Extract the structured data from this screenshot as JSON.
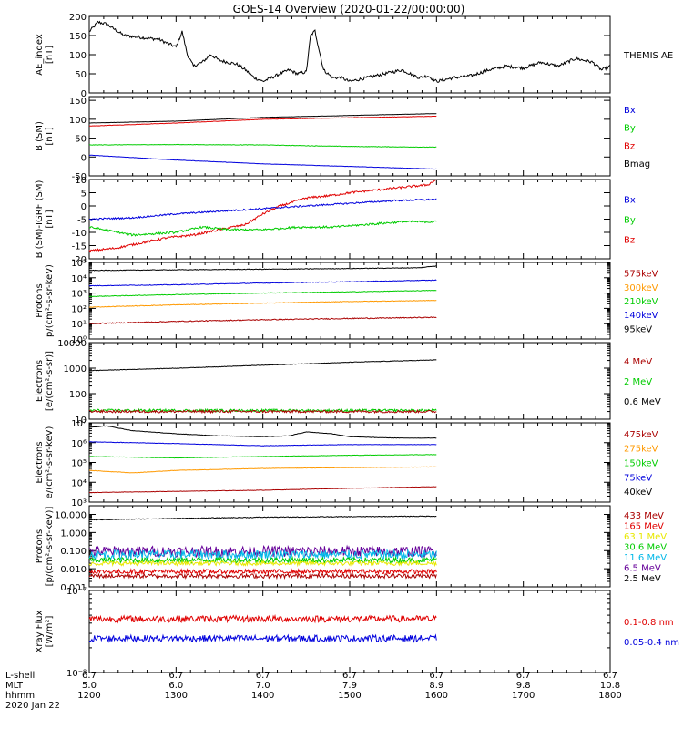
{
  "title": "GOES-14 Overview (2020-01-22/00:00:00)",
  "footer": {
    "row_labels": [
      "L-shell",
      "MLT",
      "hhmm",
      "2020 Jan 22"
    ],
    "columns": [
      {
        "lshell": "6.7",
        "mlt": "5.0",
        "hhmm": "1200"
      },
      {
        "lshell": "6.7",
        "mlt": "6.0",
        "hhmm": "1300"
      },
      {
        "lshell": "6.7",
        "mlt": "7.0",
        "hhmm": "1400"
      },
      {
        "lshell": "6.7",
        "mlt": "7.9",
        "hhmm": "1500"
      },
      {
        "lshell": "6.7",
        "mlt": "8.9",
        "hhmm": "1600"
      },
      {
        "lshell": "6.7",
        "mlt": "9.8",
        "hhmm": "1700"
      },
      {
        "lshell": "6.7",
        "mlt": "10.8",
        "hhmm": "1800"
      }
    ]
  },
  "colors": {
    "black": "#000000",
    "red": "#e00000",
    "green": "#00cc00",
    "blue": "#0000dd",
    "orange": "#ff9900",
    "dark_red": "#aa0000",
    "yellow": "#e8e800",
    "cyan": "#00b8e8",
    "purple": "#660099"
  },
  "chart_data": [
    {
      "type": "line",
      "name": "ae",
      "ylabel": [
        "AE_index",
        "[nT]"
      ],
      "scale": "linear",
      "ylim": [
        0,
        200
      ],
      "yticks": [
        0,
        50,
        100,
        150,
        200
      ],
      "yticklabels": [
        "0",
        "50",
        "100",
        "150",
        "200"
      ],
      "x_hours": [
        12.0,
        18.0
      ],
      "legend": [
        {
          "label": "THEMIS AE",
          "color": "#000000"
        }
      ],
      "series": [
        {
          "name": "THEMIS AE",
          "color": "#000000",
          "noise": 4,
          "x": [
            12.0,
            12.1,
            12.2,
            12.3,
            12.4,
            12.6,
            12.8,
            12.9,
            13.0,
            13.07,
            13.13,
            13.2,
            13.3,
            13.4,
            13.5,
            13.7,
            13.8,
            13.9,
            14.0,
            14.1,
            14.2,
            14.3,
            14.4,
            14.5,
            14.55,
            14.6,
            14.65,
            14.7,
            14.8,
            14.9,
            15.0,
            15.2,
            15.4,
            15.6,
            15.8,
            15.9,
            16.0,
            16.2,
            16.4,
            16.6,
            16.8,
            17.0,
            17.2,
            17.4,
            17.6,
            17.8,
            17.9,
            18.0
          ],
          "y": [
            160,
            185,
            180,
            165,
            150,
            145,
            140,
            130,
            120,
            160,
            100,
            70,
            80,
            100,
            85,
            75,
            60,
            40,
            30,
            40,
            50,
            60,
            50,
            55,
            150,
            162,
            110,
            60,
            40,
            40,
            30,
            40,
            50,
            60,
            40,
            45,
            30,
            40,
            45,
            60,
            70,
            65,
            80,
            70,
            90,
            80,
            60,
            70
          ]
        }
      ]
    },
    {
      "type": "line",
      "name": "b_sm",
      "ylabel": [
        "B (SM)",
        "[nT]"
      ],
      "scale": "linear",
      "ylim": [
        -50,
        160
      ],
      "yticks": [
        -50,
        0,
        50,
        100,
        150
      ],
      "yticklabels": [
        "-50",
        "0",
        "50",
        "100",
        "150"
      ],
      "x_hours": [
        12.0,
        18.0
      ],
      "legend": [
        {
          "label": "Bx",
          "color": "#0000dd"
        },
        {
          "label": "By",
          "color": "#00cc00"
        },
        {
          "label": "Bz",
          "color": "#e00000"
        },
        {
          "label": "Bmag",
          "color": "#000000"
        }
      ],
      "series": [
        {
          "name": "Bmag",
          "color": "#000000",
          "noise": 0.3,
          "x": [
            12.0,
            13.0,
            14.0,
            15.0,
            16.0
          ],
          "y": [
            90,
            95,
            105,
            110,
            115
          ]
        },
        {
          "name": "Bz",
          "color": "#e00000",
          "noise": 0.5,
          "x": [
            12.0,
            13.0,
            14.0,
            15.0,
            16.0
          ],
          "y": [
            82,
            90,
            100,
            104,
            108
          ]
        },
        {
          "name": "By",
          "color": "#00cc00",
          "noise": 0.6,
          "x": [
            12.0,
            13.0,
            14.0,
            15.0,
            16.0
          ],
          "y": [
            32,
            33,
            32,
            28,
            26
          ]
        },
        {
          "name": "Bx",
          "color": "#0000dd",
          "noise": 0.4,
          "x": [
            12.0,
            13.0,
            14.0,
            15.0,
            16.0
          ],
          "y": [
            5,
            -8,
            -18,
            -25,
            -32
          ]
        }
      ]
    },
    {
      "type": "line",
      "name": "b_igrf",
      "ylabel": [
        "B (SM)-IGRF (SM)",
        "[nT]"
      ],
      "scale": "linear",
      "ylim": [
        -20,
        10
      ],
      "yticks": [
        -20,
        -15,
        -10,
        -5,
        0,
        5,
        10
      ],
      "yticklabels": [
        "-20",
        "-15",
        "-10",
        "-5",
        "0",
        "5",
        "10"
      ],
      "x_hours": [
        12.0,
        18.0
      ],
      "legend": [
        {
          "label": "Bx",
          "color": "#0000dd"
        },
        {
          "label": "By",
          "color": "#00cc00"
        },
        {
          "label": "Bz",
          "color": "#e00000"
        }
      ],
      "series": [
        {
          "name": "Bz",
          "color": "#e00000",
          "noise": 0.4,
          "x": [
            12.0,
            12.3,
            12.6,
            12.9,
            13.2,
            13.5,
            13.8,
            14.0,
            14.2,
            14.5,
            14.8,
            15.0,
            15.3,
            15.6,
            15.9,
            16.0
          ],
          "y": [
            -17,
            -16,
            -14,
            -12,
            -11,
            -9,
            -7,
            -3,
            0,
            3,
            4,
            5,
            6,
            7,
            8,
            10
          ]
        },
        {
          "name": "By",
          "color": "#00cc00",
          "noise": 0.4,
          "x": [
            12.0,
            12.5,
            13.0,
            13.3,
            13.6,
            14.0,
            14.4,
            14.8,
            15.2,
            15.6,
            16.0
          ],
          "y": [
            -8,
            -11,
            -10,
            -8,
            -9,
            -9,
            -8,
            -8,
            -7,
            -6,
            -6
          ]
        },
        {
          "name": "Bx",
          "color": "#0000dd",
          "noise": 0.3,
          "x": [
            12.0,
            12.5,
            13.0,
            13.5,
            14.0,
            14.5,
            15.0,
            15.5,
            16.0
          ],
          "y": [
            -5,
            -4.5,
            -3,
            -2,
            -1,
            0,
            1,
            2,
            2.5
          ]
        }
      ]
    },
    {
      "type": "line",
      "name": "protons_low",
      "ylabel": [
        "Protons",
        "p/(cm²-s-sr-keV)"
      ],
      "scale": "log",
      "ylim": [
        1,
        100000
      ],
      "yticks": [
        1,
        10,
        100,
        1000,
        10000,
        100000
      ],
      "yticklabels": [
        "10⁰",
        "10¹",
        "10²",
        "10³",
        "10⁴",
        "10⁵"
      ],
      "x_hours": [
        12.0,
        18.0
      ],
      "legend": [
        {
          "label": "575keV",
          "color": "#aa0000"
        },
        {
          "label": "300keV",
          "color": "#ff9900"
        },
        {
          "label": "210keV",
          "color": "#00cc00"
        },
        {
          "label": "140keV",
          "color": "#0000dd"
        },
        {
          "label": "95keV",
          "color": "#000000"
        }
      ],
      "series": [
        {
          "name": "95keV",
          "color": "#000000",
          "noise": 0.02,
          "x": [
            12.0,
            13.0,
            14.0,
            15.0,
            15.8,
            16.0
          ],
          "y": [
            30000,
            33000,
            36000,
            40000,
            45000,
            60000
          ]
        },
        {
          "name": "140keV",
          "color": "#0000dd",
          "noise": 0.02,
          "x": [
            12.0,
            13.0,
            14.0,
            15.0,
            16.0
          ],
          "y": [
            3000,
            3500,
            4500,
            5500,
            7000
          ]
        },
        {
          "name": "210keV",
          "color": "#00cc00",
          "noise": 0.02,
          "x": [
            12.0,
            13.0,
            14.0,
            15.0,
            16.0
          ],
          "y": [
            600,
            800,
            1000,
            1200,
            1500
          ]
        },
        {
          "name": "300keV",
          "color": "#ff9900",
          "noise": 0.02,
          "x": [
            12.0,
            13.0,
            14.0,
            15.0,
            16.0
          ],
          "y": [
            120,
            170,
            220,
            280,
            330
          ]
        },
        {
          "name": "575keV",
          "color": "#aa0000",
          "noise": 0.03,
          "x": [
            12.0,
            13.0,
            14.0,
            15.0,
            16.0
          ],
          "y": [
            10,
            14,
            18,
            22,
            26
          ]
        }
      ]
    },
    {
      "type": "line",
      "name": "electrons_mev",
      "ylabel": [
        "Electrons",
        "[e/(cm²-s-sr)]"
      ],
      "scale": "log",
      "ylim": [
        10,
        10000
      ],
      "yticks": [
        10,
        100,
        1000,
        10000
      ],
      "yticklabels": [
        "10",
        "100",
        "1000",
        "10000"
      ],
      "x_hours": [
        12.0,
        18.0
      ],
      "legend": [
        {
          "label": "4 MeV",
          "color": "#aa0000"
        },
        {
          "label": "2 MeV",
          "color": "#00cc00"
        },
        {
          "label": "0.6 MeV",
          "color": "#000000"
        }
      ],
      "series": [
        {
          "name": "0.6 MeV",
          "color": "#000000",
          "noise": 0.01,
          "x": [
            12.0,
            13.0,
            14.0,
            15.0,
            16.0
          ],
          "y": [
            800,
            1000,
            1300,
            1700,
            2100
          ]
        },
        {
          "name": "2 MeV",
          "color": "#00cc00",
          "noise": 0.05,
          "x": [
            12.0,
            16.0
          ],
          "y": [
            22,
            22
          ]
        },
        {
          "name": "4 MeV",
          "color": "#aa0000",
          "noise": 0.05,
          "x": [
            12.0,
            16.0
          ],
          "y": [
            20,
            20
          ]
        }
      ]
    },
    {
      "type": "line",
      "name": "electrons_kev",
      "ylabel": [
        "Electrons",
        "e/(cm²-s-sr-keV)"
      ],
      "scale": "log",
      "ylim": [
        1000,
        10000000
      ],
      "yticks": [
        1000,
        10000,
        100000,
        1000000,
        10000000
      ],
      "yticklabels": [
        "10³",
        "10⁴",
        "10⁵",
        "10⁶",
        "10⁷"
      ],
      "x_hours": [
        12.0,
        18.0
      ],
      "legend": [
        {
          "label": "475keV",
          "color": "#aa0000"
        },
        {
          "label": "275keV",
          "color": "#ff9900"
        },
        {
          "label": "150keV",
          "color": "#00cc00"
        },
        {
          "label": "75keV",
          "color": "#0000dd"
        },
        {
          "label": "40keV",
          "color": "#000000"
        }
      ],
      "series": [
        {
          "name": "40keV",
          "color": "#000000",
          "noise": 0.01,
          "x": [
            12.0,
            12.2,
            12.5,
            13.0,
            13.5,
            14.0,
            14.3,
            14.5,
            14.8,
            15.0,
            15.3,
            15.6,
            16.0
          ],
          "y": [
            6000000,
            7000000,
            4000000,
            2800000,
            2200000,
            2000000,
            2200000,
            3500000,
            2800000,
            2000000,
            1800000,
            1700000,
            1700000
          ]
        },
        {
          "name": "75keV",
          "color": "#0000dd",
          "noise": 0.01,
          "x": [
            12.0,
            13.0,
            14.0,
            15.0,
            16.0
          ],
          "y": [
            1100000,
            900000,
            700000,
            800000,
            800000
          ]
        },
        {
          "name": "150keV",
          "color": "#00cc00",
          "noise": 0.01,
          "x": [
            12.0,
            13.0,
            14.0,
            15.0,
            16.0
          ],
          "y": [
            200000,
            170000,
            200000,
            230000,
            250000
          ]
        },
        {
          "name": "275keV",
          "color": "#ff9900",
          "noise": 0.01,
          "x": [
            12.0,
            12.5,
            13.0,
            14.0,
            15.0,
            16.0
          ],
          "y": [
            40000,
            30000,
            40000,
            50000,
            55000,
            60000
          ]
        },
        {
          "name": "475keV",
          "color": "#aa0000",
          "noise": 0.01,
          "x": [
            12.0,
            13.0,
            14.0,
            15.0,
            16.0
          ],
          "y": [
            3000,
            3500,
            4000,
            5000,
            6000
          ]
        }
      ]
    },
    {
      "type": "line",
      "name": "protons_mev",
      "ylabel": [
        "Protons",
        "[p/(cm²-s-sr-keV)]"
      ],
      "scale": "log",
      "ylim": [
        0.001,
        30
      ],
      "yticks": [
        0.001,
        0.01,
        0.1,
        1,
        10
      ],
      "yticklabels": [
        "0.001",
        "0.010",
        "0.100",
        "1.000",
        "10.000"
      ],
      "x_hours": [
        12.0,
        18.0
      ],
      "legend": [
        {
          "label": "433 MeV",
          "color": "#aa0000"
        },
        {
          "label": "165 MeV",
          "color": "#e00000"
        },
        {
          "label": "63.1 MeV",
          "color": "#e8e800"
        },
        {
          "label": "30.6 MeV",
          "color": "#00cc00"
        },
        {
          "label": "11.6 MeV",
          "color": "#00b8e8"
        },
        {
          "label": "6.5 MeV",
          "color": "#660099"
        },
        {
          "label": "2.5 MeV",
          "color": "#000000"
        }
      ],
      "series": [
        {
          "name": "2.5 MeV",
          "color": "#000000",
          "noise": 0.02,
          "x": [
            12.0,
            13.0,
            14.0,
            15.0,
            16.0
          ],
          "y": [
            5,
            6,
            7,
            7.5,
            8
          ]
        },
        {
          "name": "6.5 MeV",
          "color": "#660099",
          "noise": 0.3,
          "x": [
            12.0,
            16.0
          ],
          "y": [
            0.09,
            0.09
          ]
        },
        {
          "name": "11.6 MeV",
          "color": "#00b8e8",
          "noise": 0.25,
          "x": [
            12.0,
            16.0
          ],
          "y": [
            0.06,
            0.06
          ]
        },
        {
          "name": "30.6 MeV",
          "color": "#00cc00",
          "noise": 0.15,
          "x": [
            12.0,
            16.0
          ],
          "y": [
            0.03,
            0.03
          ]
        },
        {
          "name": "63.1 MeV",
          "color": "#e8e800",
          "noise": 0.12,
          "x": [
            12.0,
            16.0
          ],
          "y": [
            0.02,
            0.02
          ]
        },
        {
          "name": "165 MeV",
          "color": "#e00000",
          "noise": 0.12,
          "x": [
            12.0,
            16.0
          ],
          "y": [
            0.007,
            0.007
          ]
        },
        {
          "name": "433 MeV",
          "color": "#aa0000",
          "noise": 0.12,
          "x": [
            12.0,
            16.0
          ],
          "y": [
            0.004,
            0.004
          ]
        }
      ]
    },
    {
      "type": "line",
      "name": "xray",
      "ylabel": [
        "Xray Flux",
        "[W/m²]"
      ],
      "scale": "log",
      "ylim": [
        1e-08,
        1e-07
      ],
      "yticks": [
        1e-08,
        1e-07
      ],
      "yticklabels": [
        "10⁻⁸",
        "10⁻⁷"
      ],
      "x_hours": [
        12.0,
        18.0
      ],
      "legend": [
        {
          "label": "0.1-0.8 nm",
          "color": "#e00000"
        },
        {
          "label": "0.05-0.4 nm",
          "color": "#0000dd"
        }
      ],
      "series": [
        {
          "name": "0.1-0.8 nm",
          "color": "#e00000",
          "noise": 0.04,
          "x": [
            12.0,
            16.0
          ],
          "y": 4.5e-08
        },
        {
          "name": "0.05-0.4 nm",
          "color": "#0000dd",
          "noise": 0.04,
          "x": [
            12.0,
            16.0
          ],
          "y": 2.6e-08
        }
      ]
    }
  ]
}
